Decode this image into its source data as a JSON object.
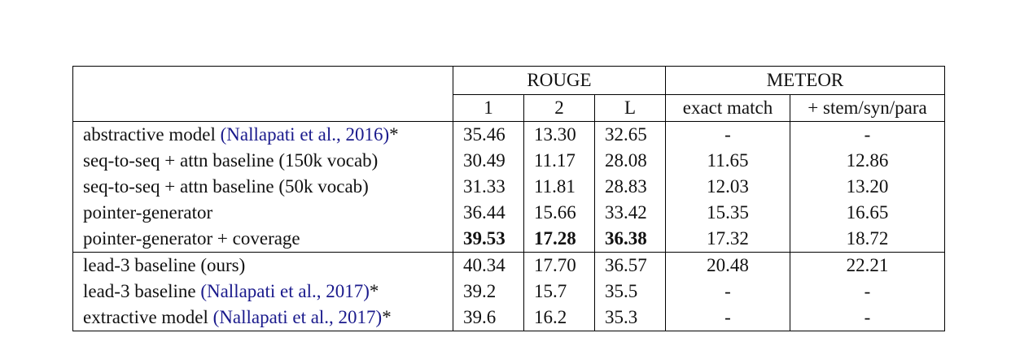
{
  "header": {
    "rouge_label": "ROUGE",
    "meteor_label": "METEOR",
    "rouge_cols": [
      "1",
      "2",
      "L"
    ],
    "meteor_cols": [
      "exact match",
      "+ stem/syn/para"
    ]
  },
  "rows": [
    {
      "model": "abstractive model ",
      "cite": "(Nallapati et al., 2016)",
      "suffix": "*",
      "r1": "35.46",
      "r2": "13.30",
      "rl": "32.65",
      "m_exact": "-",
      "m_stem": "-"
    },
    {
      "model": "seq-to-seq + attn baseline (150k vocab)",
      "cite": "",
      "suffix": "",
      "r1": "30.49",
      "r2": "11.17",
      "rl": "28.08",
      "m_exact": "11.65",
      "m_stem": "12.86"
    },
    {
      "model": "seq-to-seq + attn baseline (50k vocab)",
      "cite": "",
      "suffix": "",
      "r1": "31.33",
      "r2": "11.81",
      "rl": "28.83",
      "m_exact": "12.03",
      "m_stem": "13.20"
    },
    {
      "model": "pointer-generator",
      "cite": "",
      "suffix": "",
      "r1": "36.44",
      "r2": "15.66",
      "rl": "33.42",
      "m_exact": "15.35",
      "m_stem": "16.65"
    },
    {
      "model": "pointer-generator + coverage",
      "cite": "",
      "suffix": "",
      "r1": "39.53",
      "r2": "17.28",
      "rl": "36.38",
      "m_exact": "17.32",
      "m_stem": "18.72"
    },
    {
      "model": "lead-3 baseline (ours)",
      "cite": "",
      "suffix": "",
      "r1": "40.34",
      "r2": "17.70",
      "rl": "36.57",
      "m_exact": "20.48",
      "m_stem": "22.21"
    },
    {
      "model": "lead-3 baseline ",
      "cite": "(Nallapati et al., 2017)",
      "suffix": "*",
      "r1": "39.2",
      "r2": "15.7",
      "rl": "35.5",
      "m_exact": "-",
      "m_stem": "-"
    },
    {
      "model": "extractive model ",
      "cite": "(Nallapati et al., 2017)",
      "suffix": "*",
      "r1": "39.6",
      "r2": "16.2",
      "rl": "35.3",
      "m_exact": "-",
      "m_stem": "-"
    }
  ]
}
